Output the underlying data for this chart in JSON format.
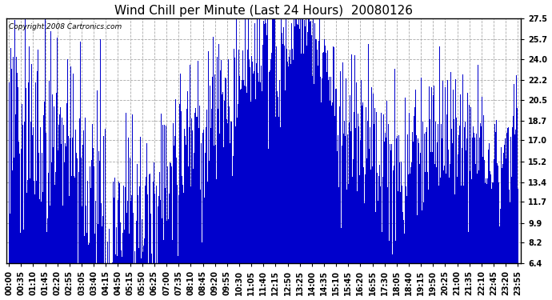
{
  "title": "Wind Chill per Minute (Last 24 Hours)  20080126",
  "copyright": "Copyright 2008 Cartronics.com",
  "bar_color": "#0000cc",
  "background_color": "#ffffff",
  "plot_bg_color": "#ffffff",
  "yticks": [
    6.4,
    8.2,
    9.9,
    11.7,
    13.4,
    15.2,
    17.0,
    18.7,
    20.5,
    22.2,
    24.0,
    25.7,
    27.5
  ],
  "ylim": [
    6.4,
    27.5
  ],
  "xtick_labels": [
    "00:00",
    "00:35",
    "01:10",
    "01:45",
    "02:20",
    "02:55",
    "03:05",
    "03:40",
    "04:15",
    "04:50",
    "05:15",
    "05:50",
    "06:25",
    "07:00",
    "07:35",
    "08:10",
    "08:45",
    "09:20",
    "09:55",
    "10:30",
    "11:05",
    "11:40",
    "12:15",
    "12:50",
    "13:25",
    "14:00",
    "14:35",
    "15:10",
    "15:45",
    "16:20",
    "16:55",
    "17:30",
    "18:05",
    "18:40",
    "19:15",
    "19:50",
    "20:25",
    "21:00",
    "21:35",
    "22:10",
    "22:45",
    "23:20",
    "23:55"
  ],
  "grid_color": "#aaaaaa",
  "title_fontsize": 11,
  "tick_fontsize": 7
}
